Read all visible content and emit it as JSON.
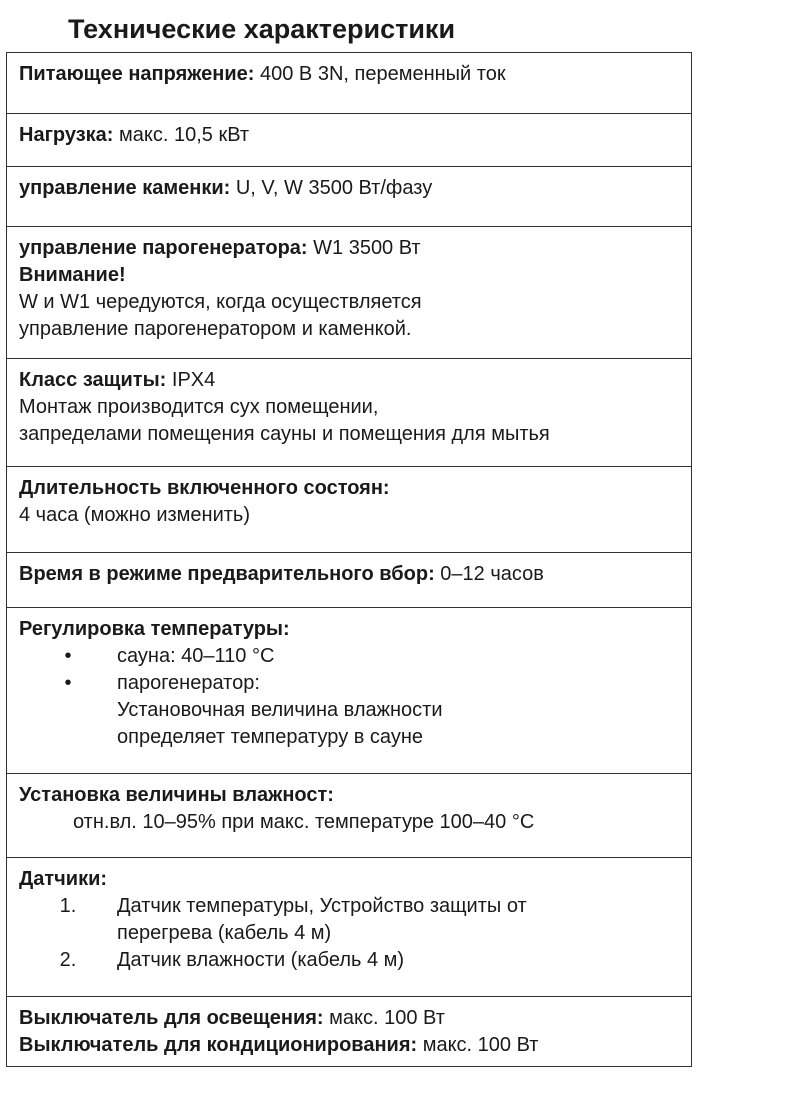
{
  "title": "Технические характеристики",
  "rows": [
    {
      "label": "Питающее напряжение:",
      "value": " 400 В 3N, переменный ток"
    },
    {
      "label": "Нагрузка:",
      "value": " макс. 10,5 кВт"
    },
    {
      "label": "управление каменки:",
      "value": " U, V, W  3500 Вт/фазу"
    },
    {
      "label": "управление парогенератора:",
      "value": " W1  3500 Вт",
      "label2": "Внимание!",
      "lines": [
        "W и W1 чередуются, когда осуществляется",
        "управление парогенератором и каменкой."
      ]
    },
    {
      "label": "Класс защиты:",
      "value": " IPX4",
      "lines": [
        "Монтаж производится сух помещении,",
        "запределами помещения сауны и помещения для мытья"
      ]
    },
    {
      "label": "Длительность включенного состоян:",
      "lines": [
        "4 часа (можно изменить)"
      ]
    },
    {
      "label": "Время в режиме предварительного вбор:",
      "value": " 0–12 часов"
    },
    {
      "label": "Регулировка температуры:",
      "items": [
        {
          "marker": "•",
          "lines": [
            "сауна: 40–110 °C"
          ]
        },
        {
          "marker": "•",
          "lines": [
            "парогенератор:",
            "Установочная величина влажности",
            "определяет температуру в сауне"
          ]
        }
      ]
    },
    {
      "label": "Установка величины влажност:",
      "lines": [
        "отн.вл. 10–95% при макс. температуре 100–40 °C"
      ]
    },
    {
      "label": "Датчики:",
      "items": [
        {
          "marker": "1.",
          "lines": [
            "Датчик температуры, Устройство защиты от",
            "перегрева (кабель 4 м)"
          ]
        },
        {
          "marker": "2.",
          "lines": [
            "Датчик влажности (кабель 4 м)"
          ]
        }
      ]
    },
    {
      "label": "Выключатель для освещения:",
      "value": " макс. 100 Вт",
      "label2": "Выключатель для кондиционирования:",
      "value2": " макс. 100 Вт"
    }
  ]
}
